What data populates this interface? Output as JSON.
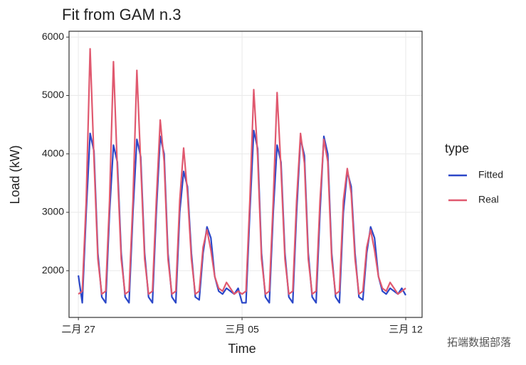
{
  "chart_data": {
    "type": "line",
    "title": "Fit from GAM n.3",
    "x_label": "Time",
    "y_label": "Load (kW)",
    "legend_title": "type",
    "legend_position": "right",
    "grid": true,
    "watermark": "拓端数据部落",
    "xlim": [
      -0.4,
      14.7
    ],
    "ylim": [
      1200,
      6100
    ],
    "xticks": [
      {
        "value": 0,
        "label": "二月 27"
      },
      {
        "value": 7,
        "label": "三月 05"
      },
      {
        "value": 14,
        "label": "三月 12"
      }
    ],
    "yticks": [
      2000,
      3000,
      4000,
      5000,
      6000
    ],
    "x": [
      0,
      0.167,
      0.333,
      0.5,
      0.667,
      0.833,
      1,
      1.167,
      1.333,
      1.5,
      1.667,
      1.833,
      2,
      2.167,
      2.333,
      2.5,
      2.667,
      2.833,
      3,
      3.167,
      3.333,
      3.5,
      3.667,
      3.833,
      4,
      4.167,
      4.333,
      4.5,
      4.667,
      4.833,
      5,
      5.167,
      5.333,
      5.5,
      5.667,
      5.833,
      6,
      6.167,
      6.333,
      6.5,
      6.667,
      6.833,
      7,
      7.167,
      7.333,
      7.5,
      7.667,
      7.833,
      8,
      8.167,
      8.333,
      8.5,
      8.667,
      8.833,
      9,
      9.167,
      9.333,
      9.5,
      9.667,
      9.833,
      10,
      10.167,
      10.333,
      10.5,
      10.667,
      10.833,
      11,
      11.167,
      11.333,
      11.5,
      11.667,
      11.833,
      12,
      12.167,
      12.333,
      12.5,
      12.667,
      12.833,
      13,
      13.167,
      13.333,
      13.5,
      13.667,
      13.833,
      14
    ],
    "series": [
      {
        "name": "Fitted",
        "color": "#2b47c8",
        "values": [
          1920,
          1450,
          3000,
          4350,
          4050,
          2300,
          1550,
          1450,
          3000,
          4150,
          3860,
          2300,
          1550,
          1450,
          3000,
          4250,
          3950,
          2300,
          1550,
          1450,
          3000,
          4300,
          4000,
          2300,
          1550,
          1450,
          3000,
          3700,
          3440,
          2300,
          1550,
          1500,
          2300,
          2750,
          2560,
          1900,
          1650,
          1600,
          1700,
          1650,
          1600,
          1700,
          1450,
          1450,
          3000,
          4400,
          4090,
          2300,
          1550,
          1450,
          3000,
          4150,
          3860,
          2300,
          1550,
          1450,
          3000,
          4270,
          3970,
          2300,
          1550,
          1450,
          3000,
          4300,
          4000,
          2300,
          1550,
          1450,
          3000,
          3700,
          3440,
          2300,
          1550,
          1500,
          2300,
          2750,
          2560,
          1900,
          1650,
          1600,
          1700,
          1650,
          1600,
          1700,
          1580
        ]
      },
      {
        "name": "Real",
        "color": "#e0596f",
        "values": [
          1600,
          1650,
          3200,
          5800,
          3920,
          2200,
          1600,
          1650,
          3200,
          5580,
          3740,
          2200,
          1600,
          1650,
          3200,
          5430,
          3830,
          2200,
          1600,
          1650,
          3200,
          4580,
          3870,
          2200,
          1600,
          1650,
          3200,
          4100,
          3330,
          2200,
          1600,
          1650,
          2400,
          2700,
          2350,
          1900,
          1700,
          1650,
          1800,
          1700,
          1600,
          1650,
          1600,
          1650,
          3200,
          5100,
          3960,
          2200,
          1600,
          1650,
          3200,
          5050,
          3740,
          2200,
          1600,
          1650,
          3200,
          4350,
          3840,
          2200,
          1600,
          1650,
          3200,
          4250,
          3870,
          2200,
          1600,
          1650,
          3200,
          3750,
          3330,
          2200,
          1600,
          1650,
          2400,
          2700,
          2350,
          1900,
          1700,
          1650,
          1800,
          1700,
          1600,
          1650,
          1700
        ]
      }
    ]
  }
}
